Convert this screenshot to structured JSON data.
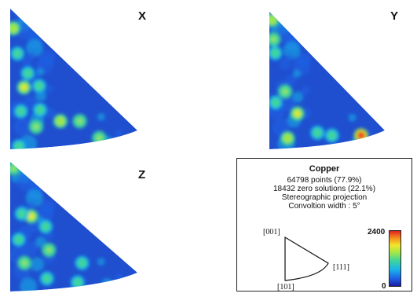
{
  "chart_data": {
    "type": "heatmap",
    "projection": "Stereographic projection",
    "plot_shape": "inverse pole figure standard triangle [001]-[101]-[111]",
    "colorscale": [
      "#1a1aa6",
      "#1e62e6",
      "#19b4e8",
      "#3fd49c",
      "#9ee64a",
      "#f1e62a",
      "#f5901e",
      "#e02020"
    ],
    "background_color": "#1f4fcf",
    "scale_min": "0",
    "scale_max": "2400",
    "panels": [
      {
        "label": "X",
        "hotspots": [
          {
            "u": 0.04,
            "v": 0.14,
            "level": 0.5
          },
          {
            "u": 0.16,
            "v": 0.56,
            "level": 0.6
          },
          {
            "u": 0.26,
            "v": 0.46,
            "level": 0.35
          },
          {
            "u": 0.38,
            "v": 0.55,
            "level": 0.3
          },
          {
            "u": 0.09,
            "v": 0.73,
            "level": 0.3
          },
          {
            "u": 0.22,
            "v": 0.84,
            "level": 0.45
          },
          {
            "u": 0.47,
            "v": 0.8,
            "level": 0.55
          },
          {
            "u": 0.66,
            "v": 0.8,
            "level": 0.45
          },
          {
            "u": 0.74,
            "v": 0.92,
            "level": 0.4
          },
          {
            "u": 0.3,
            "v": 0.72,
            "level": 0.3
          },
          {
            "u": 0.05,
            "v": 0.98,
            "level": 0.35
          },
          {
            "u": 0.12,
            "v": 0.32,
            "level": 0.28
          }
        ]
      },
      {
        "label": "Y",
        "hotspots": [
          {
            "u": 0.04,
            "v": 0.06,
            "level": 0.5
          },
          {
            "u": 0.08,
            "v": 0.2,
            "level": 0.45
          },
          {
            "u": 0.1,
            "v": 0.3,
            "level": 0.3
          },
          {
            "u": 0.2,
            "v": 0.58,
            "level": 0.4
          },
          {
            "u": 0.05,
            "v": 0.66,
            "level": 0.35
          },
          {
            "u": 0.3,
            "v": 0.74,
            "level": 0.6
          },
          {
            "u": 0.15,
            "v": 0.92,
            "level": 0.55
          },
          {
            "u": 0.45,
            "v": 0.88,
            "level": 0.3
          },
          {
            "u": 0.58,
            "v": 0.9,
            "level": 0.3
          },
          {
            "u": 0.86,
            "v": 0.9,
            "level": 1.0
          }
        ]
      },
      {
        "label": "Z",
        "hotspots": [
          {
            "u": 0.1,
            "v": 0.05,
            "level": 0.45
          },
          {
            "u": 0.35,
            "v": 0.42,
            "level": 0.6
          },
          {
            "u": 0.18,
            "v": 0.4,
            "level": 0.3
          },
          {
            "u": 0.52,
            "v": 0.5,
            "level": 0.3
          },
          {
            "u": 0.12,
            "v": 0.78,
            "level": 0.45
          },
          {
            "u": 0.42,
            "v": 0.68,
            "level": 0.4
          },
          {
            "u": 0.7,
            "v": 0.78,
            "level": 0.3
          },
          {
            "u": 0.55,
            "v": 0.93,
            "level": 0.35
          },
          {
            "u": 0.08,
            "v": 0.6,
            "level": 0.35
          },
          {
            "u": 0.3,
            "v": 0.9,
            "level": 0.3
          }
        ]
      }
    ]
  },
  "legend": {
    "material": "Copper",
    "lines": [
      "64798 points (77.9%)",
      "18432 zero solutions (22.1%)",
      "Stereographic projection",
      "Convoltion width : 5°"
    ],
    "directions": {
      "top": "[001]",
      "right": "[111]",
      "bottom": "[101]"
    }
  }
}
